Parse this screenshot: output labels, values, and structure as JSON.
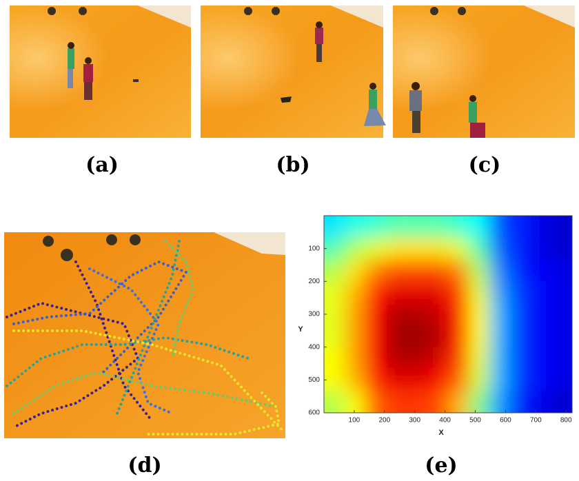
{
  "figure": {
    "panels": [
      "(a)",
      "(b)",
      "(c)",
      "(d)",
      "(e)"
    ]
  },
  "chart_data": {
    "type": "heatmap",
    "x_label": "X",
    "y_label": "Y",
    "xlim": [
      0,
      820
    ],
    "ylim": [
      0,
      600
    ],
    "xticks": [
      100,
      200,
      300,
      400,
      500,
      600,
      700,
      800
    ],
    "yticks": [
      100,
      200,
      300,
      400,
      500,
      600
    ],
    "z": [
      [
        0.35,
        0.4,
        0.42,
        0.45,
        0.45,
        0.45,
        0.42,
        0.38,
        0.2,
        0.15,
        0.1,
        0.08
      ],
      [
        0.45,
        0.55,
        0.6,
        0.65,
        0.65,
        0.65,
        0.6,
        0.45,
        0.22,
        0.15,
        0.1,
        0.08
      ],
      [
        0.55,
        0.65,
        0.75,
        0.8,
        0.8,
        0.8,
        0.75,
        0.55,
        0.25,
        0.15,
        0.12,
        0.1
      ],
      [
        0.6,
        0.7,
        0.85,
        0.9,
        0.9,
        0.9,
        0.82,
        0.6,
        0.28,
        0.18,
        0.12,
        0.1
      ],
      [
        0.6,
        0.72,
        0.88,
        0.95,
        0.95,
        0.93,
        0.85,
        0.62,
        0.3,
        0.18,
        0.12,
        0.1
      ],
      [
        0.6,
        0.72,
        0.88,
        0.97,
        0.97,
        0.95,
        0.85,
        0.62,
        0.3,
        0.18,
        0.12,
        0.1
      ],
      [
        0.62,
        0.72,
        0.88,
        0.95,
        0.95,
        0.92,
        0.82,
        0.6,
        0.3,
        0.18,
        0.12,
        0.1
      ],
      [
        0.62,
        0.7,
        0.85,
        0.9,
        0.9,
        0.88,
        0.78,
        0.58,
        0.3,
        0.18,
        0.12,
        0.1
      ],
      [
        0.55,
        0.62,
        0.78,
        0.82,
        0.82,
        0.8,
        0.7,
        0.5,
        0.28,
        0.16,
        0.1,
        0.08
      ]
    ]
  }
}
